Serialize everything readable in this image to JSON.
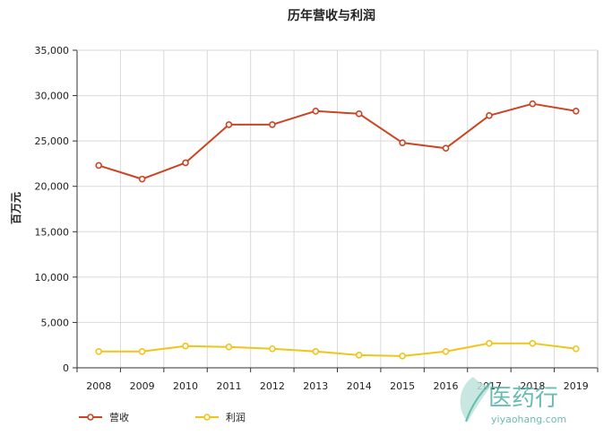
{
  "chart_data": {
    "type": "line",
    "title": "历年营收与利润",
    "xlabel": "",
    "ylabel": "百万元",
    "categories": [
      "2008",
      "2009",
      "2010",
      "2011",
      "2012",
      "2013",
      "2014",
      "2015",
      "2016",
      "2017",
      "2018",
      "2019"
    ],
    "ylim": [
      0,
      35000
    ],
    "yticks": [
      "0",
      "5,000",
      "10,000",
      "15,000",
      "20,000",
      "25,000",
      "30,000",
      "35,000"
    ],
    "ytick_values": [
      0,
      5000,
      10000,
      15000,
      20000,
      25000,
      30000,
      35000
    ],
    "grid": true,
    "legend_position": "bottom-left",
    "series": [
      {
        "name": "营收",
        "color": "#cc4422",
        "values": [
          22300,
          20800,
          22600,
          26800,
          26800,
          28300,
          28000,
          24800,
          24200,
          27800,
          29100,
          28300
        ]
      },
      {
        "name": "利润",
        "color": "#f0c419",
        "values": [
          1800,
          1800,
          2400,
          2300,
          2100,
          1800,
          1400,
          1300,
          1800,
          2700,
          2700,
          2100
        ]
      }
    ]
  },
  "watermark": {
    "brand": "医药行",
    "url": "yiyaohang.com",
    "color": "#4fb1a6"
  }
}
